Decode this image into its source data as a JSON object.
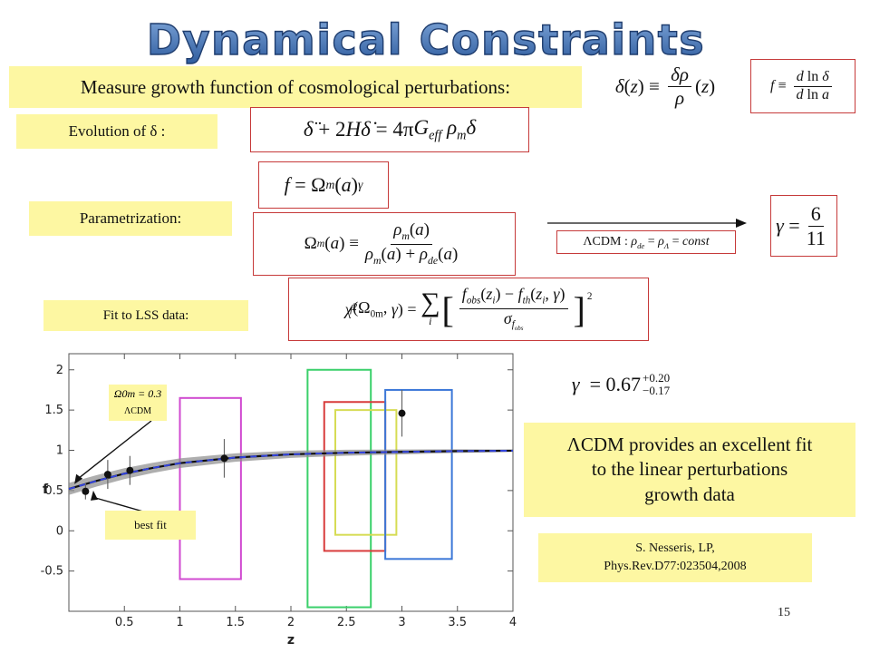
{
  "slide": {
    "title": "Dynamical Constraints",
    "page_number": "15",
    "accent_border_color": "#c63a3a",
    "label_fill_color": "#fdf7a2",
    "title_color": "#3e6aa8"
  },
  "labels": {
    "measure": "Measure growth function of cosmological perturbations:",
    "evolution": "Evolution of δ :",
    "parametrization": "Parametrization:",
    "fit_lss": "Fit to LSS data:",
    "conclusion_line1": "ΛCDM provides an excellent fit",
    "conclusion_line2": "to the linear perturbations",
    "conclusion_line3": "growth data",
    "reference_line1": "S. Nesseris, LP,",
    "reference_line2": "Phys.Rev.D77:023504,2008"
  },
  "equations": {
    "delta_def": "δ(z) ≡ δρ/ρ (z)",
    "f_def": "f ≡ d ln δ / d ln a",
    "evolution": "δ̈ + 2Hδ̇ = 4πG_eff ρ_m δ",
    "f_param": "f = Ω_m(a)^γ",
    "omega_m": "Ω_m(a) ≡ ρ_m(a) / (ρ_m(a) + ρ_de(a))",
    "lcdm": "ΛCDM : ρ_de = ρ_Λ = const",
    "gamma_lcdm": "γ = 6/11",
    "chi2": "χ²_f(Ω_0m, γ) = Σ_i [ (f_obs(z_i) − f_th(z_i, γ)) / σ_f_obs ]²",
    "gamma_fit": "γ = 0.67 +0.20 −0.17"
  },
  "chart_data": {
    "type": "line",
    "xlabel": "z",
    "ylabel": "f",
    "xlim": [
      0,
      4
    ],
    "ylim": [
      -1,
      2.2
    ],
    "x_ticks": [
      "0.5",
      "1",
      "1.5",
      "2",
      "2.5",
      "3",
      "3.5",
      "4"
    ],
    "y_ticks": [
      "2",
      "1.5",
      "1",
      "0.5",
      "0",
      "-0.5"
    ],
    "curve": {
      "x": [
        0,
        0.25,
        0.5,
        0.75,
        1,
        1.5,
        2,
        2.5,
        3,
        3.5,
        4
      ],
      "y": [
        0.52,
        0.62,
        0.71,
        0.78,
        0.84,
        0.91,
        0.95,
        0.97,
        0.98,
        0.99,
        0.995
      ]
    },
    "points": [
      {
        "z": 0.15,
        "f": 0.49,
        "err": 0.1
      },
      {
        "z": 0.35,
        "f": 0.7,
        "err": 0.18
      },
      {
        "z": 0.55,
        "f": 0.75,
        "err": 0.18
      },
      {
        "z": 1.4,
        "f": 0.9,
        "err": 0.24
      },
      {
        "z": 3.0,
        "f": 1.46,
        "err": 0.29
      }
    ],
    "rectangles": [
      {
        "color": "#d04ad0",
        "x": [
          1,
          1.55
        ],
        "y": [
          -0.6,
          1.65
        ]
      },
      {
        "color": "#3ad06a",
        "x": [
          2.15,
          2.72
        ],
        "y": [
          -0.95,
          2.0
        ]
      },
      {
        "color": "#d83c3c",
        "x": [
          2.3,
          2.85
        ],
        "y": [
          -0.25,
          1.6
        ]
      },
      {
        "color": "#d6dc55",
        "x": [
          2.4,
          2.95
        ],
        "y": [
          -0.05,
          1.5
        ]
      },
      {
        "color": "#3c78d8",
        "x": [
          2.85,
          3.45
        ],
        "y": [
          -0.35,
          1.75
        ]
      }
    ],
    "annotations": {
      "lcdm_omega": "Ω0m = 0.3",
      "lcdm_tag": "ΛCDM",
      "best_fit": "best fit"
    }
  }
}
